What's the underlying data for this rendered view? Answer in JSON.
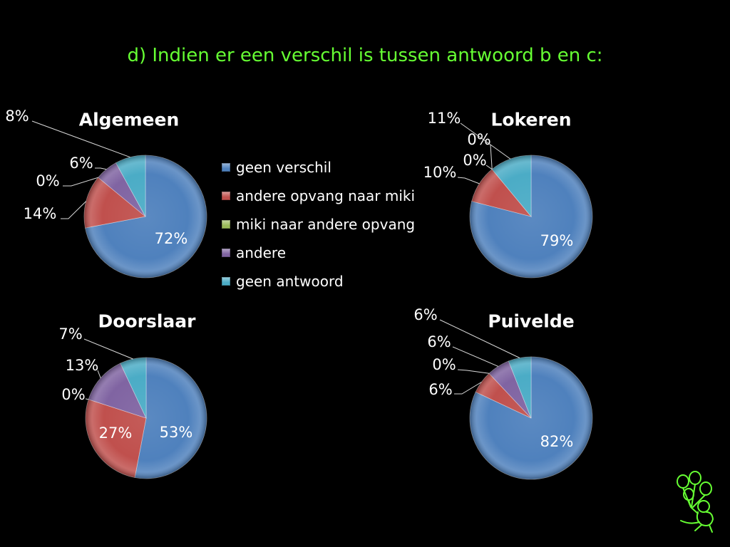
{
  "slide": {
    "title": "d) Indien er een verschil is tussen antwoord b en c:",
    "title_color": "#66ff33",
    "background": "#000000"
  },
  "legend": {
    "placement": "center",
    "items": [
      {
        "label": "geen verschil",
        "color": "#4f81bd"
      },
      {
        "label": "andere opvang naar miki",
        "color": "#c0504d"
      },
      {
        "label": "miki naar andere opvang",
        "color": "#9bbb59"
      },
      {
        "label": "andere",
        "color": "#8064a2"
      },
      {
        "label": "geen antwoord",
        "color": "#4bacc6"
      }
    ]
  },
  "chart_data": [
    {
      "type": "pie",
      "title": "Algemeen",
      "values": [
        72,
        14,
        0,
        6,
        8
      ],
      "data_labels": [
        "72%",
        "14%",
        "0%",
        "6%",
        "8%"
      ]
    },
    {
      "type": "pie",
      "title": "Lokeren",
      "values": [
        79,
        10,
        0,
        0,
        11
      ],
      "data_labels": [
        "79%",
        "10%",
        "0%",
        "0%",
        "11%"
      ]
    },
    {
      "type": "pie",
      "title": "Doorslaar",
      "values": [
        53,
        27,
        0,
        13,
        7
      ],
      "data_labels": [
        "53%",
        "27%",
        "0%",
        "13%",
        "7%"
      ]
    },
    {
      "type": "pie",
      "title": "Puivelde",
      "values": [
        82,
        6,
        0,
        6,
        6
      ],
      "data_labels": [
        "82%",
        "6%",
        "0%",
        "6%",
        "6%"
      ]
    }
  ],
  "logo": {
    "icon": "child-with-balloons-icon",
    "color": "#66ff33"
  }
}
